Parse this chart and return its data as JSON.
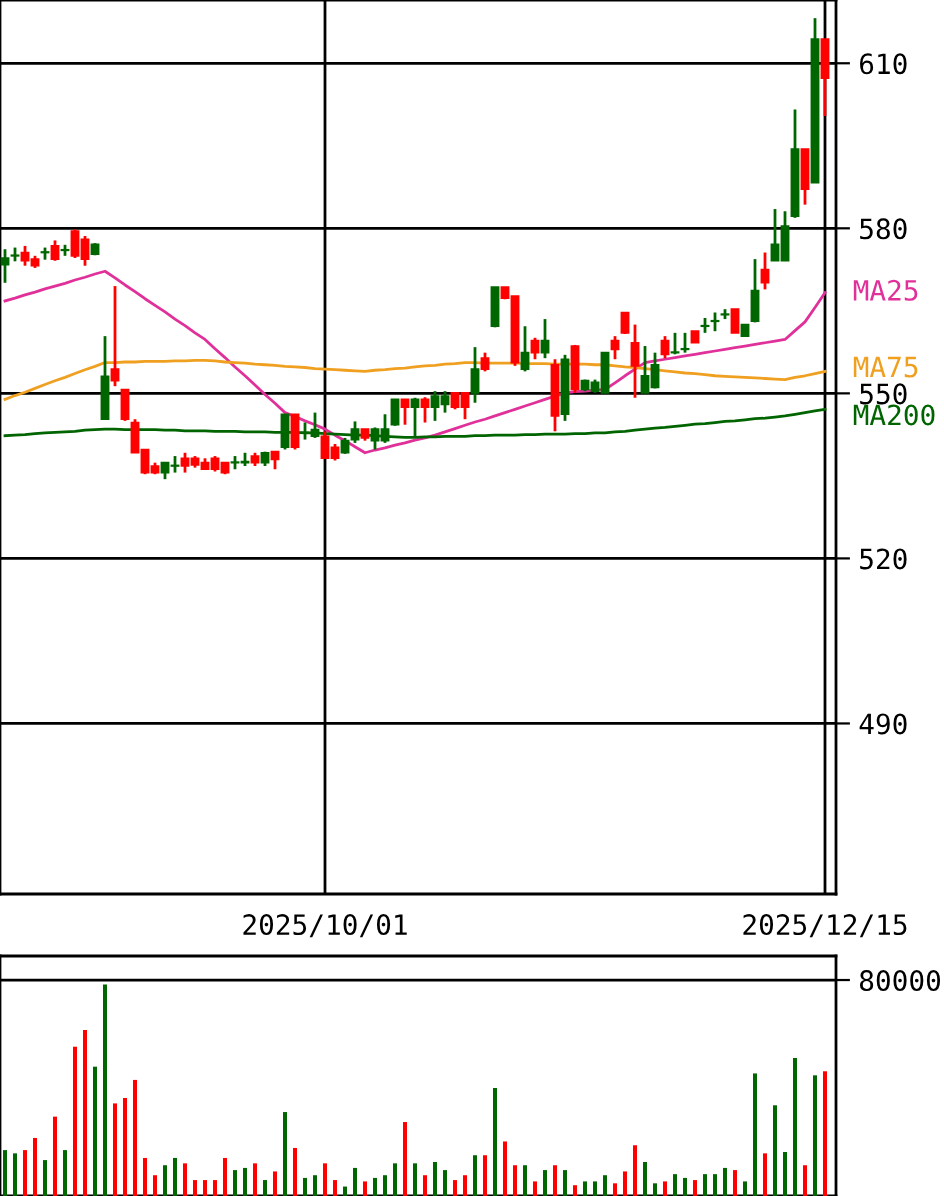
{
  "chart_data": [
    {
      "type": "candlestick",
      "categories": [
        null,
        null,
        null,
        null,
        null,
        null,
        null,
        null,
        null,
        null,
        null,
        null,
        null,
        null,
        null,
        null,
        null,
        null,
        null,
        null,
        null,
        null,
        null,
        null,
        null,
        null,
        null,
        null,
        null,
        null,
        null,
        null,
        "2025/10/01",
        null,
        null,
        null,
        null,
        null,
        null,
        null,
        null,
        null,
        null,
        null,
        null,
        null,
        null,
        null,
        null,
        null,
        null,
        null,
        null,
        null,
        null,
        null,
        null,
        null,
        null,
        null,
        null,
        null,
        null,
        null,
        null,
        null,
        null,
        null,
        null,
        null,
        null,
        null,
        null,
        null,
        null,
        null,
        null,
        null,
        null,
        null,
        null,
        null,
        "2025/12/15"
      ],
      "ohlc": [
        [
          573.4,
          576.2,
          570.1,
          574.6
        ],
        [
          575.0,
          576.5,
          574.0,
          575.1
        ],
        [
          575.6,
          576.8,
          573.2,
          574.1
        ],
        [
          574.4,
          575.0,
          572.8,
          573.2
        ],
        [
          575.6,
          576.5,
          574.3,
          575.7
        ],
        [
          576.8,
          577.8,
          574.1,
          574.4
        ],
        [
          576.0,
          577.0,
          575.0,
          576.1
        ],
        [
          579.5,
          579.8,
          574.6,
          575.0
        ],
        [
          578.0,
          578.6,
          573.2,
          574.4
        ],
        [
          575.3,
          577.3,
          575.1,
          577.1
        ],
        [
          545.3,
          560.4,
          545.3,
          553.1
        ],
        [
          554.4,
          569.5,
          551.3,
          552.3
        ],
        [
          550.7,
          550.7,
          545.0,
          545.3
        ],
        [
          544.7,
          545.3,
          539.2,
          539.2
        ],
        [
          539.8,
          539.8,
          535.3,
          535.6
        ],
        [
          536.8,
          537.4,
          535.3,
          535.6
        ],
        [
          535.6,
          537.4,
          534.4,
          537.4
        ],
        [
          536.8,
          538.6,
          535.6,
          536.9
        ],
        [
          538.2,
          539.2,
          535.6,
          536.8
        ],
        [
          538.2,
          538.6,
          536.5,
          537.0
        ],
        [
          537.4,
          538.2,
          536.2,
          536.2
        ],
        [
          538.2,
          538.6,
          535.8,
          536.2
        ],
        [
          537.4,
          537.4,
          535.3,
          535.6
        ],
        [
          537.4,
          538.6,
          536.2,
          537.5
        ],
        [
          537.4,
          539.2,
          536.8,
          537.6
        ],
        [
          538.6,
          539.2,
          536.8,
          537.4
        ],
        [
          537.4,
          539.4,
          536.8,
          539.2
        ],
        [
          539.4,
          539.4,
          536.2,
          538.0
        ],
        [
          540.2,
          546.2,
          539.8,
          546.2
        ],
        [
          546.2,
          546.2,
          539.8,
          540.2
        ],
        [
          542.8,
          544.7,
          541.6,
          542.9
        ],
        [
          542.2,
          546.5,
          541.9,
          543.4
        ],
        [
          542.2,
          543.1,
          538.2,
          538.2
        ],
        [
          540.2,
          540.8,
          537.8,
          538.2
        ],
        [
          539.2,
          541.9,
          539.0,
          541.4
        ],
        [
          541.6,
          544.9,
          541.0,
          543.5
        ],
        [
          543.5,
          543.5,
          541.4,
          541.9
        ],
        [
          541.4,
          543.8,
          539.8,
          543.5
        ],
        [
          541.4,
          546.2,
          541.0,
          543.5
        ],
        [
          544.3,
          548.9,
          544.1,
          548.9
        ],
        [
          548.9,
          548.9,
          544.3,
          547.5
        ],
        [
          547.5,
          549.2,
          542.2,
          548.9
        ],
        [
          548.9,
          549.3,
          544.7,
          547.5
        ],
        [
          547.5,
          550.4,
          545.0,
          549.5
        ],
        [
          548.0,
          550.4,
          546.5,
          549.5
        ],
        [
          550.1,
          550.1,
          547.1,
          547.5
        ],
        [
          550.1,
          550.1,
          545.3,
          547.5
        ],
        [
          550.1,
          558.4,
          548.3,
          554.4
        ],
        [
          556.4,
          557.4,
          554.0,
          554.4
        ],
        [
          562.2,
          569.3,
          562.0,
          569.3
        ],
        [
          569.3,
          569.3,
          567.1,
          567.3
        ],
        [
          567.7,
          567.7,
          555.0,
          555.6
        ],
        [
          554.4,
          562.2,
          554.0,
          557.4
        ],
        [
          559.6,
          560.1,
          556.2,
          557.4
        ],
        [
          557.4,
          563.5,
          556.4,
          559.6
        ],
        [
          555.2,
          556.2,
          543.1,
          545.9
        ],
        [
          546.2,
          557.0,
          545.0,
          556.2
        ],
        [
          558.6,
          558.8,
          550.1,
          550.7
        ],
        [
          550.7,
          552.5,
          550.4,
          552.3
        ],
        [
          550.4,
          552.5,
          550.1,
          552.0
        ],
        [
          550.1,
          557.4,
          550.1,
          557.4
        ],
        [
          559.6,
          560.4,
          556.2,
          558.0
        ],
        [
          564.7,
          564.7,
          560.8,
          561.0
        ],
        [
          559.2,
          562.5,
          549.2,
          555.0
        ],
        [
          550.1,
          558.6,
          550.1,
          553.2
        ],
        [
          551.1,
          557.4,
          550.9,
          555.2
        ],
        [
          559.6,
          560.4,
          556.4,
          557.1
        ],
        [
          557.4,
          561.0,
          557.1,
          557.5
        ],
        [
          558.0,
          561.0,
          557.4,
          558.1
        ],
        [
          561.3,
          561.3,
          559.2,
          559.2
        ],
        [
          562.2,
          563.7,
          561.0,
          562.3
        ],
        [
          563.1,
          564.7,
          561.3,
          563.2
        ],
        [
          564.3,
          565.3,
          563.5,
          564.4
        ],
        [
          565.3,
          565.3,
          561.0,
          561.0
        ],
        [
          560.4,
          562.5,
          560.4,
          562.5
        ],
        [
          563.1,
          574.4,
          562.9,
          568.7
        ],
        [
          572.5,
          575.6,
          568.9,
          570.1
        ],
        [
          574.1,
          583.5,
          574.1,
          577.1
        ],
        [
          574.1,
          583.1,
          574.1,
          580.4
        ],
        [
          582.2,
          601.6,
          581.9,
          594.4
        ],
        [
          594.4,
          594.4,
          584.3,
          587.1
        ],
        [
          588.3,
          618.2,
          588.3,
          614.4
        ],
        [
          614.4,
          614.4,
          600.4,
          607.3
        ]
      ],
      "colors": [
        "#006600",
        "#006600",
        "#ff0000",
        "#ff0000",
        "#006600",
        "#ff0000",
        "#006600",
        "#ff0000",
        "#ff0000",
        "#006600",
        "#006600",
        "#ff0000",
        "#ff0000",
        "#ff0000",
        "#ff0000",
        "#ff0000",
        "#006600",
        "#006600",
        "#ff0000",
        "#ff0000",
        "#ff0000",
        "#ff0000",
        "#ff0000",
        "#006600",
        "#006600",
        "#ff0000",
        "#006600",
        "#ff0000",
        "#006600",
        "#ff0000",
        "#006600",
        "#006600",
        "#ff0000",
        "#ff0000",
        "#006600",
        "#006600",
        "#ff0000",
        "#006600",
        "#006600",
        "#006600",
        "#ff0000",
        "#006600",
        "#ff0000",
        "#006600",
        "#006600",
        "#ff0000",
        "#ff0000",
        "#006600",
        "#ff0000",
        "#006600",
        "#ff0000",
        "#ff0000",
        "#006600",
        "#ff0000",
        "#006600",
        "#ff0000",
        "#006600",
        "#ff0000",
        "#006600",
        "#006600",
        "#006600",
        "#ff0000",
        "#ff0000",
        "#ff0000",
        "#006600",
        "#006600",
        "#ff0000",
        "#006600",
        "#006600",
        "#ff0000",
        "#006600",
        "#006600",
        "#006600",
        "#ff0000",
        "#006600",
        "#006600",
        "#ff0000",
        "#006600",
        "#006600",
        "#006600",
        "#ff0000",
        "#006600",
        "#ff0000"
      ],
      "series": [
        {
          "type": "line",
          "name": "MA25",
          "color": "#e0309a",
          "values": [
            566.8,
            567.3,
            567.9,
            568.4,
            569.0,
            569.5,
            570.0,
            570.6,
            571.1,
            571.7,
            572.2,
            571.0,
            569.7,
            568.5,
            567.2,
            566.0,
            564.8,
            563.5,
            562.3,
            561.0,
            559.8,
            558.1,
            556.5,
            554.8,
            553.2,
            551.5,
            549.8,
            548.2,
            546.5,
            545.8,
            545.0,
            544.3,
            543.5,
            542.4,
            541.4,
            540.3,
            539.2,
            539.7,
            540.1,
            540.6,
            541.0,
            541.5,
            541.9,
            542.4,
            543.0,
            543.6,
            544.2,
            544.8,
            545.3,
            545.9,
            546.5,
            547.1,
            547.7,
            548.3,
            548.9,
            549.5,
            550.1,
            550.3,
            550.4,
            550.6,
            550.7,
            551.9,
            553.2,
            554.4,
            555.6,
            555.9,
            556.2,
            556.5,
            556.8,
            557.1,
            557.4,
            557.7,
            558.0,
            558.3,
            558.6,
            558.9,
            559.2,
            559.5,
            559.8,
            561.4,
            563.0,
            565.6,
            568.3
          ]
        },
        {
          "type": "line",
          "name": "MA75",
          "color": "#f0a020",
          "values": [
            548.9,
            549.6,
            550.2,
            550.9,
            551.6,
            552.3,
            552.9,
            553.6,
            554.3,
            554.9,
            555.6,
            555.6,
            555.7,
            555.7,
            555.8,
            555.8,
            555.8,
            555.9,
            555.9,
            556.0,
            556.0,
            555.9,
            555.7,
            555.6,
            555.5,
            555.3,
            555.2,
            555.1,
            554.9,
            554.8,
            554.7,
            554.5,
            554.4,
            554.3,
            554.2,
            554.1,
            554.0,
            554.2,
            554.3,
            554.5,
            554.6,
            554.8,
            555.0,
            555.1,
            555.3,
            555.4,
            555.6,
            555.6,
            555.5,
            555.5,
            555.5,
            555.5,
            555.4,
            555.4,
            555.4,
            555.3,
            555.3,
            555.3,
            555.3,
            555.2,
            555.2,
            555.0,
            554.8,
            554.7,
            554.5,
            554.3,
            554.1,
            553.9,
            553.7,
            553.6,
            553.4,
            553.2,
            553.1,
            553.0,
            552.9,
            552.8,
            552.7,
            552.6,
            552.5,
            552.9,
            553.2,
            553.6,
            554.0
          ]
        },
        {
          "type": "line",
          "name": "MA200",
          "color": "#006400",
          "values": [
            542.3,
            542.4,
            542.5,
            542.7,
            542.8,
            542.9,
            543.0,
            543.1,
            543.3,
            543.4,
            543.5,
            543.5,
            543.4,
            543.4,
            543.4,
            543.4,
            543.3,
            543.3,
            543.2,
            543.2,
            543.2,
            543.1,
            543.1,
            543.1,
            543.0,
            543.0,
            543.0,
            542.9,
            542.9,
            542.9,
            542.8,
            542.8,
            542.7,
            542.6,
            542.5,
            542.4,
            542.4,
            542.3,
            542.2,
            542.1,
            542.0,
            542.0,
            542.1,
            542.1,
            542.2,
            542.2,
            542.2,
            542.3,
            542.3,
            542.4,
            542.4,
            542.4,
            542.5,
            542.5,
            542.6,
            542.6,
            542.6,
            542.7,
            542.7,
            542.8,
            542.8,
            543.0,
            543.1,
            543.3,
            543.5,
            543.7,
            543.8,
            544.0,
            544.2,
            544.4,
            544.5,
            544.7,
            544.9,
            545.0,
            545.2,
            545.4,
            545.5,
            545.7,
            545.9,
            546.2,
            546.5,
            546.8,
            547.1
          ]
        }
      ],
      "ylim": [
        459,
        621.5
      ],
      "yticks": [
        490,
        520,
        550,
        580,
        610
      ],
      "grid": true
    },
    {
      "type": "bar",
      "categories": [
        null,
        null,
        null,
        null,
        null,
        null,
        null,
        null,
        null,
        null,
        null,
        null,
        null,
        null,
        null,
        null,
        null,
        null,
        null,
        null,
        null,
        null,
        null,
        null,
        null,
        null,
        null,
        null,
        null,
        null,
        null,
        null,
        "2025/10/01",
        null,
        null,
        null,
        null,
        null,
        null,
        null,
        null,
        null,
        null,
        null,
        null,
        null,
        null,
        null,
        null,
        null,
        null,
        null,
        null,
        null,
        null,
        null,
        null,
        null,
        null,
        null,
        null,
        null,
        null,
        null,
        null,
        null,
        null,
        null,
        null,
        null,
        null,
        null,
        null,
        null,
        null,
        null,
        null,
        null,
        null,
        null,
        null,
        null,
        "2025/12/15"
      ],
      "values": [
        17000,
        15800,
        17000,
        21500,
        13300,
        29400,
        17000,
        55300,
        61500,
        47900,
        78300,
        34300,
        36300,
        43000,
        14100,
        7700,
        11400,
        14100,
        12100,
        5900,
        5900,
        5900,
        14100,
        9600,
        10400,
        12100,
        5900,
        9100,
        31100,
        17800,
        6700,
        7700,
        12100,
        5900,
        3500,
        10400,
        5400,
        6700,
        7700,
        12100,
        27400,
        12100,
        7700,
        12600,
        9600,
        5900,
        7700,
        15100,
        15100,
        40000,
        20200,
        11400,
        11400,
        5400,
        9600,
        11400,
        9600,
        4000,
        5400,
        5400,
        7700,
        4700,
        9100,
        18800,
        12600,
        4700,
        5400,
        8100,
        6700,
        5900,
        8100,
        8100,
        10400,
        9600,
        5400,
        45400,
        15800,
        33600,
        16300,
        51100,
        11400,
        44700,
        46200
      ],
      "colors": [
        "#006600",
        "#006600",
        "#ff0000",
        "#ff0000",
        "#006600",
        "#ff0000",
        "#006600",
        "#ff0000",
        "#ff0000",
        "#006600",
        "#006600",
        "#ff0000",
        "#ff0000",
        "#ff0000",
        "#ff0000",
        "#ff0000",
        "#006600",
        "#006600",
        "#ff0000",
        "#ff0000",
        "#ff0000",
        "#ff0000",
        "#ff0000",
        "#006600",
        "#006600",
        "#ff0000",
        "#006600",
        "#ff0000",
        "#006600",
        "#ff0000",
        "#006600",
        "#006600",
        "#ff0000",
        "#ff0000",
        "#006600",
        "#006600",
        "#ff0000",
        "#006600",
        "#006600",
        "#006600",
        "#ff0000",
        "#006600",
        "#ff0000",
        "#006600",
        "#006600",
        "#ff0000",
        "#ff0000",
        "#006600",
        "#ff0000",
        "#006600",
        "#ff0000",
        "#ff0000",
        "#006600",
        "#ff0000",
        "#006600",
        "#ff0000",
        "#006600",
        "#ff0000",
        "#006600",
        "#006600",
        "#006600",
        "#ff0000",
        "#ff0000",
        "#ff0000",
        "#006600",
        "#006600",
        "#ff0000",
        "#006600",
        "#006600",
        "#ff0000",
        "#006600",
        "#006600",
        "#006600",
        "#ff0000",
        "#006600",
        "#006600",
        "#ff0000",
        "#006600",
        "#006600",
        "#006600",
        "#ff0000",
        "#006600",
        "#ff0000"
      ],
      "ylim": [
        0,
        88900
      ],
      "yticks": [
        80000
      ],
      "grid": "y",
      "tick_labels": "y"
    }
  ]
}
